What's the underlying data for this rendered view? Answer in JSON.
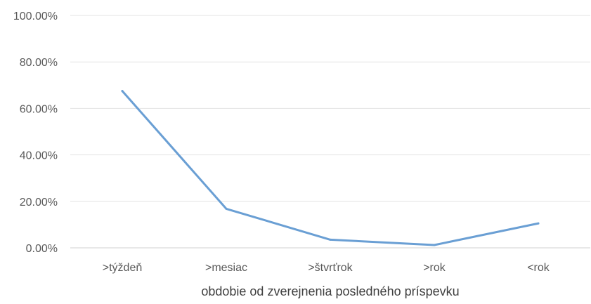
{
  "chart_data": {
    "type": "line",
    "title": "",
    "xlabel": "obdobie od zverejnenia posledného príspevku",
    "ylabel": "",
    "categories": [
      ">týždeň",
      ">mesiac",
      ">štvrťrok",
      ">rok",
      "<rok"
    ],
    "series": [
      {
        "values": [
          0.675,
          0.168,
          0.035,
          0.012,
          0.105
        ]
      }
    ],
    "ylim": [
      0,
      1.0
    ],
    "yticks": [
      0,
      0.2,
      0.4,
      0.6,
      0.8,
      1.0
    ],
    "ytick_labels": [
      "0.00%",
      "20.00%",
      "40.00%",
      "60.00%",
      "80.00%",
      "100.00%"
    ],
    "grid": true,
    "legend": "none",
    "colors": {
      "line": "#6a9fd4",
      "grid": "#e3e3e3",
      "axis": "#d0d0d0",
      "text": "#595959"
    }
  }
}
